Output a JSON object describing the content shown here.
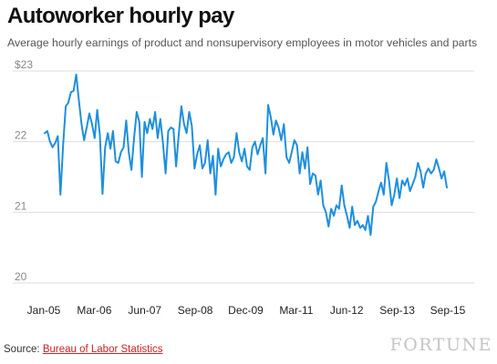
{
  "header": {
    "title": "Autoworker hourly pay",
    "subtitle": "Average hourly earnings of product and nonsupervisory employees in motor vehicles and parts"
  },
  "footer": {
    "source_prefix": "Source: ",
    "source_link": "Bureau of Labor Statistics",
    "brand": "FORTUNE"
  },
  "colors": {
    "line": "#1e8fde",
    "grid": "#dddddd",
    "tick_text": "#888888",
    "x_tick_text": "#222222",
    "link": "#cc2222"
  },
  "chart_data": {
    "type": "line",
    "title": "Autoworker hourly pay",
    "xlabel": "",
    "ylabel": "",
    "ylim": [
      20,
      23
    ],
    "y_ticks": [
      20,
      21,
      22,
      23
    ],
    "y_tick_labels": [
      "20",
      "21",
      "22",
      "$23"
    ],
    "x_ticks": [
      "Jan-05",
      "Mar-06",
      "Jun-07",
      "Sep-08",
      "Dec-09",
      "Mar-11",
      "Jun-12",
      "Sep-13",
      "Sep-15"
    ],
    "grid": "horizontal",
    "legend": "none",
    "series": [
      {
        "values": [
          22.12,
          22.15,
          22.0,
          21.92,
          21.98,
          22.08,
          21.25,
          21.95,
          22.5,
          22.55,
          22.7,
          22.72,
          22.95,
          22.58,
          22.25,
          22.02,
          22.2,
          22.4,
          22.25,
          22.05,
          22.45,
          22.1,
          21.26,
          21.92,
          22.12,
          21.9,
          22.15,
          21.72,
          21.7,
          21.85,
          21.92,
          22.3,
          21.85,
          21.6,
          22.05,
          22.42,
          22.28,
          21.5,
          22.28,
          22.12,
          22.32,
          22.18,
          22.42,
          22.05,
          22.32,
          21.98,
          21.55,
          22.15,
          22.2,
          22.18,
          21.65,
          22.1,
          22.5,
          22.25,
          22.12,
          22.42,
          22.22,
          21.62,
          21.82,
          21.95,
          21.62,
          21.7,
          22.02,
          21.55,
          21.8,
          21.25,
          21.9,
          21.65,
          21.75,
          21.82,
          21.85,
          21.7,
          21.78,
          22.12,
          21.85,
          21.72,
          21.9,
          21.65,
          21.6,
          21.92,
          22.0,
          21.82,
          21.95,
          22.05,
          21.55,
          22.52,
          22.35,
          22.1,
          22.3,
          22.2,
          22.02,
          22.25,
          21.78,
          21.7,
          21.85,
          22.02,
          21.95,
          21.55,
          21.85,
          21.62,
          21.92,
          21.4,
          21.55,
          21.52,
          21.25,
          21.45,
          21.1,
          21.0,
          20.8,
          21.05,
          20.95,
          21.1,
          21.05,
          21.38,
          21.1,
          20.95,
          20.78,
          21.08,
          20.82,
          20.88,
          20.78,
          20.82,
          20.75,
          20.95,
          20.68,
          21.08,
          21.15,
          21.3,
          21.42,
          21.25,
          21.7,
          21.45,
          21.1,
          21.25,
          21.48,
          21.2,
          21.45,
          21.38,
          21.48,
          21.3,
          21.4,
          21.5,
          21.7,
          21.58,
          21.35,
          21.55,
          21.62,
          21.55,
          21.6,
          21.75,
          21.62,
          21.48,
          21.58,
          21.35
        ]
      }
    ]
  }
}
